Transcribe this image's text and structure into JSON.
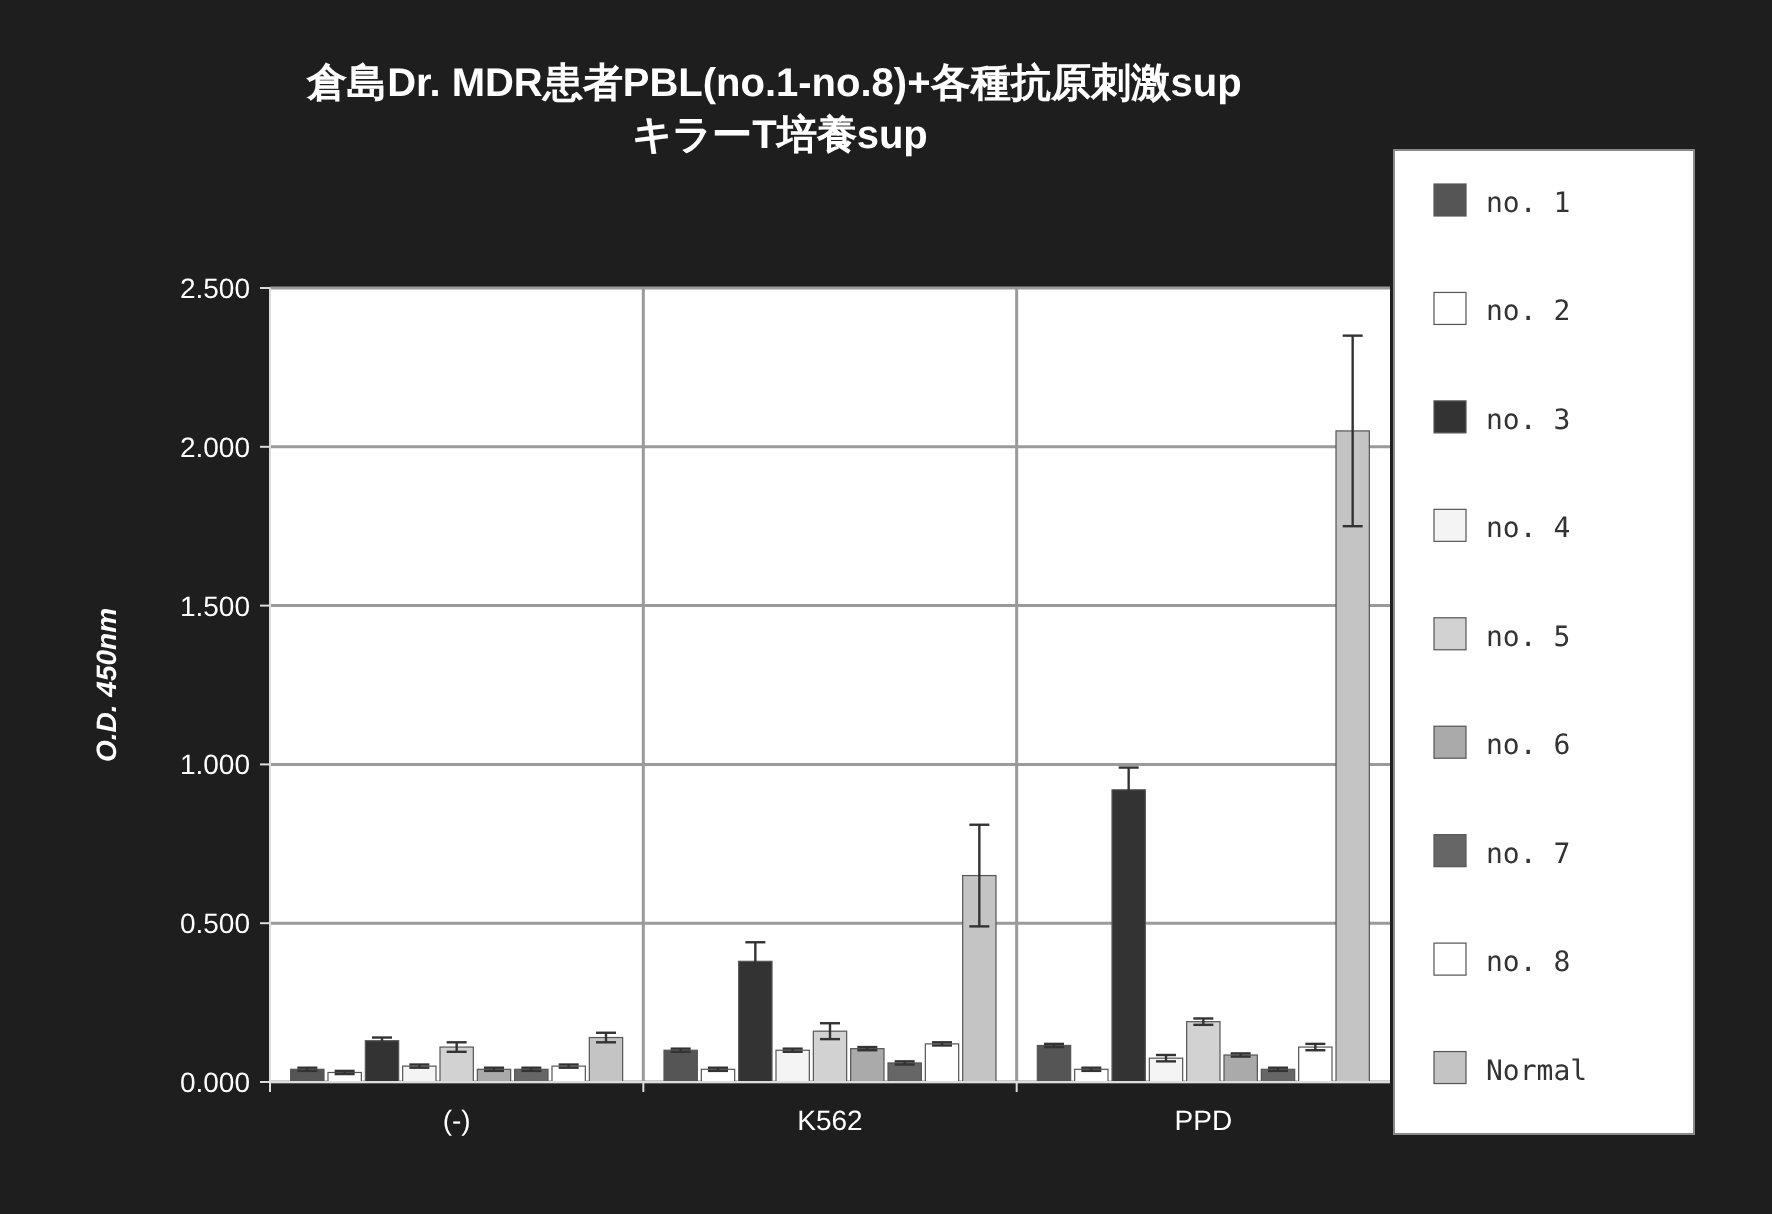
{
  "chart_data": {
    "type": "bar",
    "title": "倉島Dr. MDR患者PBL(no.1-no.8)+各種抗原刺激sup キラーT培養sup",
    "ylabel": "O.D. 450nm",
    "categories": [
      "(-)",
      "K562",
      "PPD"
    ],
    "series": [
      {
        "name": "no. 1",
        "color": "#555555",
        "values": [
          0.04,
          0.1,
          0.115
        ],
        "errors": [
          0.005,
          0.005,
          0.005
        ]
      },
      {
        "name": "no. 2",
        "color": "#ffffff",
        "values": [
          0.03,
          0.04,
          0.04
        ],
        "errors": [
          0.005,
          0.005,
          0.005
        ]
      },
      {
        "name": "no. 3",
        "color": "#333333",
        "values": [
          0.13,
          0.38,
          0.92
        ],
        "errors": [
          0.01,
          0.06,
          0.07
        ]
      },
      {
        "name": "no. 4",
        "color": "#f4f4f4",
        "values": [
          0.05,
          0.1,
          0.075
        ],
        "errors": [
          0.005,
          0.005,
          0.01
        ]
      },
      {
        "name": "no. 5",
        "color": "#d2d2d2",
        "values": [
          0.11,
          0.16,
          0.19
        ],
        "errors": [
          0.015,
          0.025,
          0.01
        ]
      },
      {
        "name": "no. 6",
        "color": "#aaaaaa",
        "values": [
          0.04,
          0.105,
          0.085
        ],
        "errors": [
          0.005,
          0.005,
          0.005
        ]
      },
      {
        "name": "no. 7",
        "color": "#666666",
        "values": [
          0.04,
          0.06,
          0.04
        ],
        "errors": [
          0.005,
          0.005,
          0.005
        ]
      },
      {
        "name": "no. 8",
        "color": "#ffffff",
        "values": [
          0.05,
          0.12,
          0.11
        ],
        "errors": [
          0.005,
          0.005,
          0.01
        ]
      },
      {
        "name": "Normal",
        "color": "#c4c4c4",
        "values": [
          0.14,
          0.65,
          2.05
        ],
        "errors": [
          0.015,
          0.16,
          0.3
        ]
      }
    ],
    "ylim": [
      0,
      2.5
    ],
    "yticks": [
      {
        "value": 0,
        "label": "0.000"
      },
      {
        "value": 0.5,
        "label": "0.500"
      },
      {
        "value": 1,
        "label": "1.000"
      },
      {
        "value": 1.5,
        "label": "1.500"
      },
      {
        "value": 2,
        "label": "2.000"
      },
      {
        "value": 2.5,
        "label": "2.500"
      }
    ],
    "grid": true,
    "legend": "right"
  }
}
